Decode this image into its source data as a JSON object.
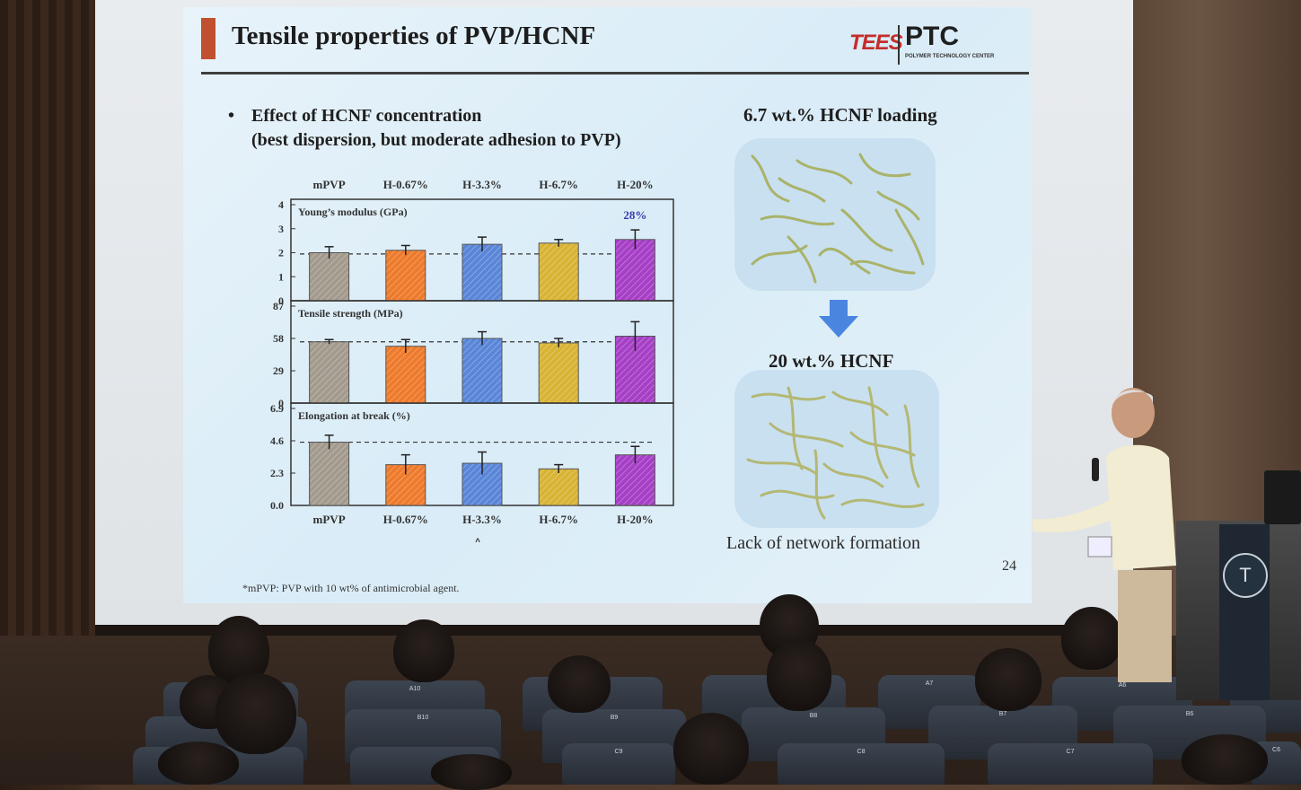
{
  "slide": {
    "title": "Tensile properties of PVP/HCNF",
    "logo_left": "TEES",
    "logo_right": "PTC",
    "logo_sub": "POLYMER TECHNOLOGY CENTER",
    "bullet_symbol": "•",
    "bullet_line1": "Effect of HCNF concentration",
    "bullet_line2": "(best dispersion, but moderate adhesion to PVP)",
    "right_heading_top": "6.7 wt.% HCNF loading",
    "right_heading_bottom": "20 wt.% HCNF",
    "caption_right": "Lack of network formation",
    "figure_label": "A",
    "footnote": "*mPVP: PVP with 10 wt% of antimicrobial agent.",
    "page_number": "24"
  },
  "chart_data": {
    "type": "bar",
    "categories": [
      "mPVP",
      "H-0.67%",
      "H-3.3%",
      "H-6.7%",
      "H-20%"
    ],
    "colors": [
      "#a39a8e",
      "#ee7a2b",
      "#5a86d8",
      "#d8b334",
      "#a63fc6"
    ],
    "reference_line": "dashed",
    "panels": [
      {
        "label": "Young’s modulus (GPa)",
        "ticks": [
          "4",
          "3",
          "2",
          "1",
          "0"
        ],
        "ylim": [
          0,
          4
        ],
        "values": [
          2.0,
          2.1,
          2.35,
          2.4,
          2.55
        ],
        "errors": [
          0.25,
          0.2,
          0.3,
          0.15,
          0.4
        ],
        "reference": 1.95,
        "annotation": "28%"
      },
      {
        "label": "Tensile strength (MPa)",
        "ticks": [
          "87",
          "58",
          "29",
          "0"
        ],
        "ylim": [
          0,
          87
        ],
        "values": [
          55,
          51,
          58,
          54,
          60
        ],
        "errors": [
          2,
          6,
          6,
          4,
          13
        ],
        "reference": 55,
        "annotation": ""
      },
      {
        "label": "Elongation at break (%)",
        "ticks": [
          "6.9",
          "4.6",
          "2.3",
          "0.0"
        ],
        "ylim": [
          0,
          6.9
        ],
        "values": [
          4.5,
          2.9,
          3.0,
          2.6,
          3.6
        ],
        "errors": [
          0.5,
          0.7,
          0.8,
          0.3,
          0.6
        ],
        "reference": 4.5,
        "annotation": ""
      }
    ]
  },
  "audience": {
    "seat_labels": [
      "A10",
      "B10",
      "B9",
      "B8",
      "B7",
      "B6",
      "A7",
      "A6",
      "C9",
      "C8",
      "C7",
      "C6"
    ]
  }
}
